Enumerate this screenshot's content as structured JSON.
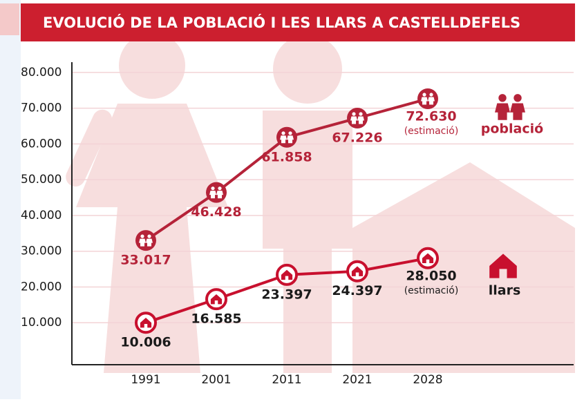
{
  "chart_data": {
    "type": "line",
    "title": "EVOLUCIÓ DE LA POBLACIÓ I LES LLARS A CASTELLDEFELS",
    "categories": [
      "1991",
      "2001",
      "2011",
      "2021",
      "2028"
    ],
    "series": [
      {
        "name": "població",
        "color": "#b52339",
        "label_color": "#b52339",
        "icon": "people",
        "values": [
          33017,
          46428,
          61858,
          67226,
          72630
        ],
        "value_labels": [
          "33.017",
          "46.428",
          "61.858",
          "67.226",
          "72.630"
        ],
        "note": "(estimació)"
      },
      {
        "name": "llars",
        "color": "#c8102e",
        "label_color": "#1a1a1a",
        "icon": "house",
        "values": [
          10006,
          16585,
          23397,
          24397,
          28050
        ],
        "value_labels": [
          "10.006",
          "16.585",
          "23.397",
          "24.397",
          "28.050"
        ],
        "note": "(estimació)"
      }
    ],
    "ylim": [
      0,
      85000
    ],
    "yticks": [
      {
        "value": 10000,
        "label": "10.000"
      },
      {
        "value": 20000,
        "label": "20.000"
      },
      {
        "value": 30000,
        "label": "30.000"
      },
      {
        "value": 40000,
        "label": "40.000"
      },
      {
        "value": 50000,
        "label": "50.000"
      },
      {
        "value": 60000,
        "label": "60.000"
      },
      {
        "value": 70000,
        "label": "70.000"
      },
      {
        "value": 80000,
        "label": "80.000"
      }
    ],
    "grid": true
  }
}
